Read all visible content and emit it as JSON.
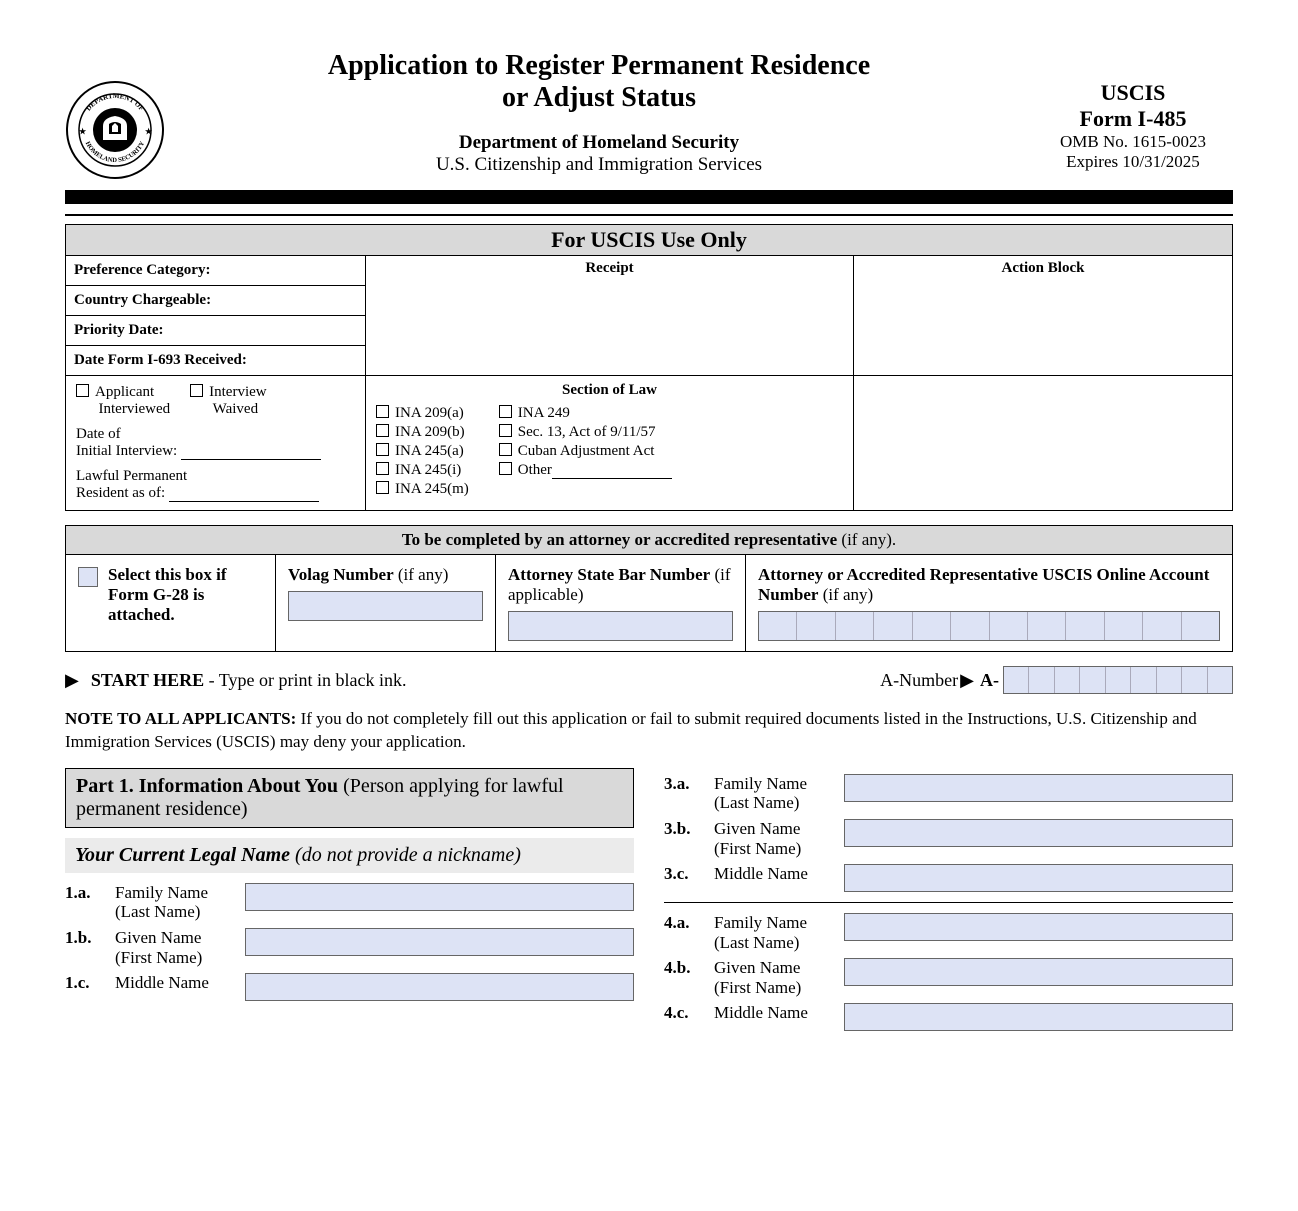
{
  "header": {
    "title_line1": "Application to Register Permanent Residence",
    "title_line2": "or Adjust Status",
    "dept": "Department of Homeland Security",
    "agency": "U.S. Citizenship and Immigration Services",
    "agency_short": "USCIS",
    "form_no": "Form I-485",
    "omb": "OMB No. 1615-0023",
    "expires": "Expires 10/31/2025"
  },
  "uscis_only": {
    "header": "For USCIS Use Only",
    "left_rows": [
      "Preference Category:",
      "Country Chargeable:",
      "Priority Date:",
      "Date Form I-693 Received:"
    ],
    "receipt": "Receipt",
    "action_block": "Action Block",
    "applicant_interviewed": "Applicant Interviewed",
    "interview_waived": "Interview Waived",
    "date_initial": "Date of Initial Interview:",
    "lpr_as_of": "Lawful Permanent Resident as of:",
    "section_of_law": "Section of Law",
    "laws_col1": [
      "INA 209(a)",
      "INA 209(b)",
      "INA 245(a)",
      "INA 245(i)",
      "INA 245(m)"
    ],
    "laws_col2": [
      "INA 249",
      "Sec. 13, Act of 9/11/57",
      "Cuban Adjustment Act",
      "Other"
    ]
  },
  "attorney": {
    "header_bold": "To be completed by an attorney or accredited representative",
    "header_light": " (if any).",
    "g28_bold": "Select this box if Form G-28 is attached.",
    "volag_bold": "Volag Number",
    "volag_light": " (if any)",
    "bar_bold": "Attorney State Bar Number",
    "bar_light": " (if applicable)",
    "acct_bold": "Attorney or Accredited Representative USCIS Online Account Number",
    "acct_light": " (if any)",
    "acct_segments": 12
  },
  "start": {
    "start_bold": "START HERE",
    "start_rest": " - Type or print in black ink.",
    "anumber_label": "A-Number ",
    "anumber_prefix": "A-",
    "anumber_segments": 9
  },
  "note": {
    "bold": "NOTE TO ALL APPLICANTS:",
    "text": "  If you do not completely fill out this application or fail to submit required documents listed in the Instructions, U.S. Citizenship and Immigration Services (USCIS) may deny your application."
  },
  "part1": {
    "head_bold": "Part 1.  Information About You",
    "head_light": " (Person applying for lawful permanent residence)",
    "sub_bold": "Your Current Legal Name",
    "sub_light": " (do not provide a nickname)",
    "fields_left": [
      {
        "num": "1.a.",
        "l1": "Family Name",
        "l2": "(Last Name)"
      },
      {
        "num": "1.b.",
        "l1": "Given Name",
        "l2": "(First Name)"
      },
      {
        "num": "1.c.",
        "l1": "Middle Name",
        "l2": ""
      }
    ],
    "fields_right_1": [
      {
        "num": "3.a.",
        "l1": "Family Name",
        "l2": "(Last Name)"
      },
      {
        "num": "3.b.",
        "l1": "Given Name",
        "l2": "(First Name)"
      },
      {
        "num": "3.c.",
        "l1": "Middle Name",
        "l2": ""
      }
    ],
    "fields_right_2": [
      {
        "num": "4.a.",
        "l1": "Family Name",
        "l2": "(Last Name)"
      },
      {
        "num": "4.b.",
        "l1": "Given Name",
        "l2": "(First Name)"
      },
      {
        "num": "4.c.",
        "l1": "Middle Name",
        "l2": ""
      }
    ]
  },
  "colors": {
    "input_bg": "#dde3f5",
    "section_bg": "#d9d9d9",
    "subsection_bg": "#ebebeb"
  }
}
